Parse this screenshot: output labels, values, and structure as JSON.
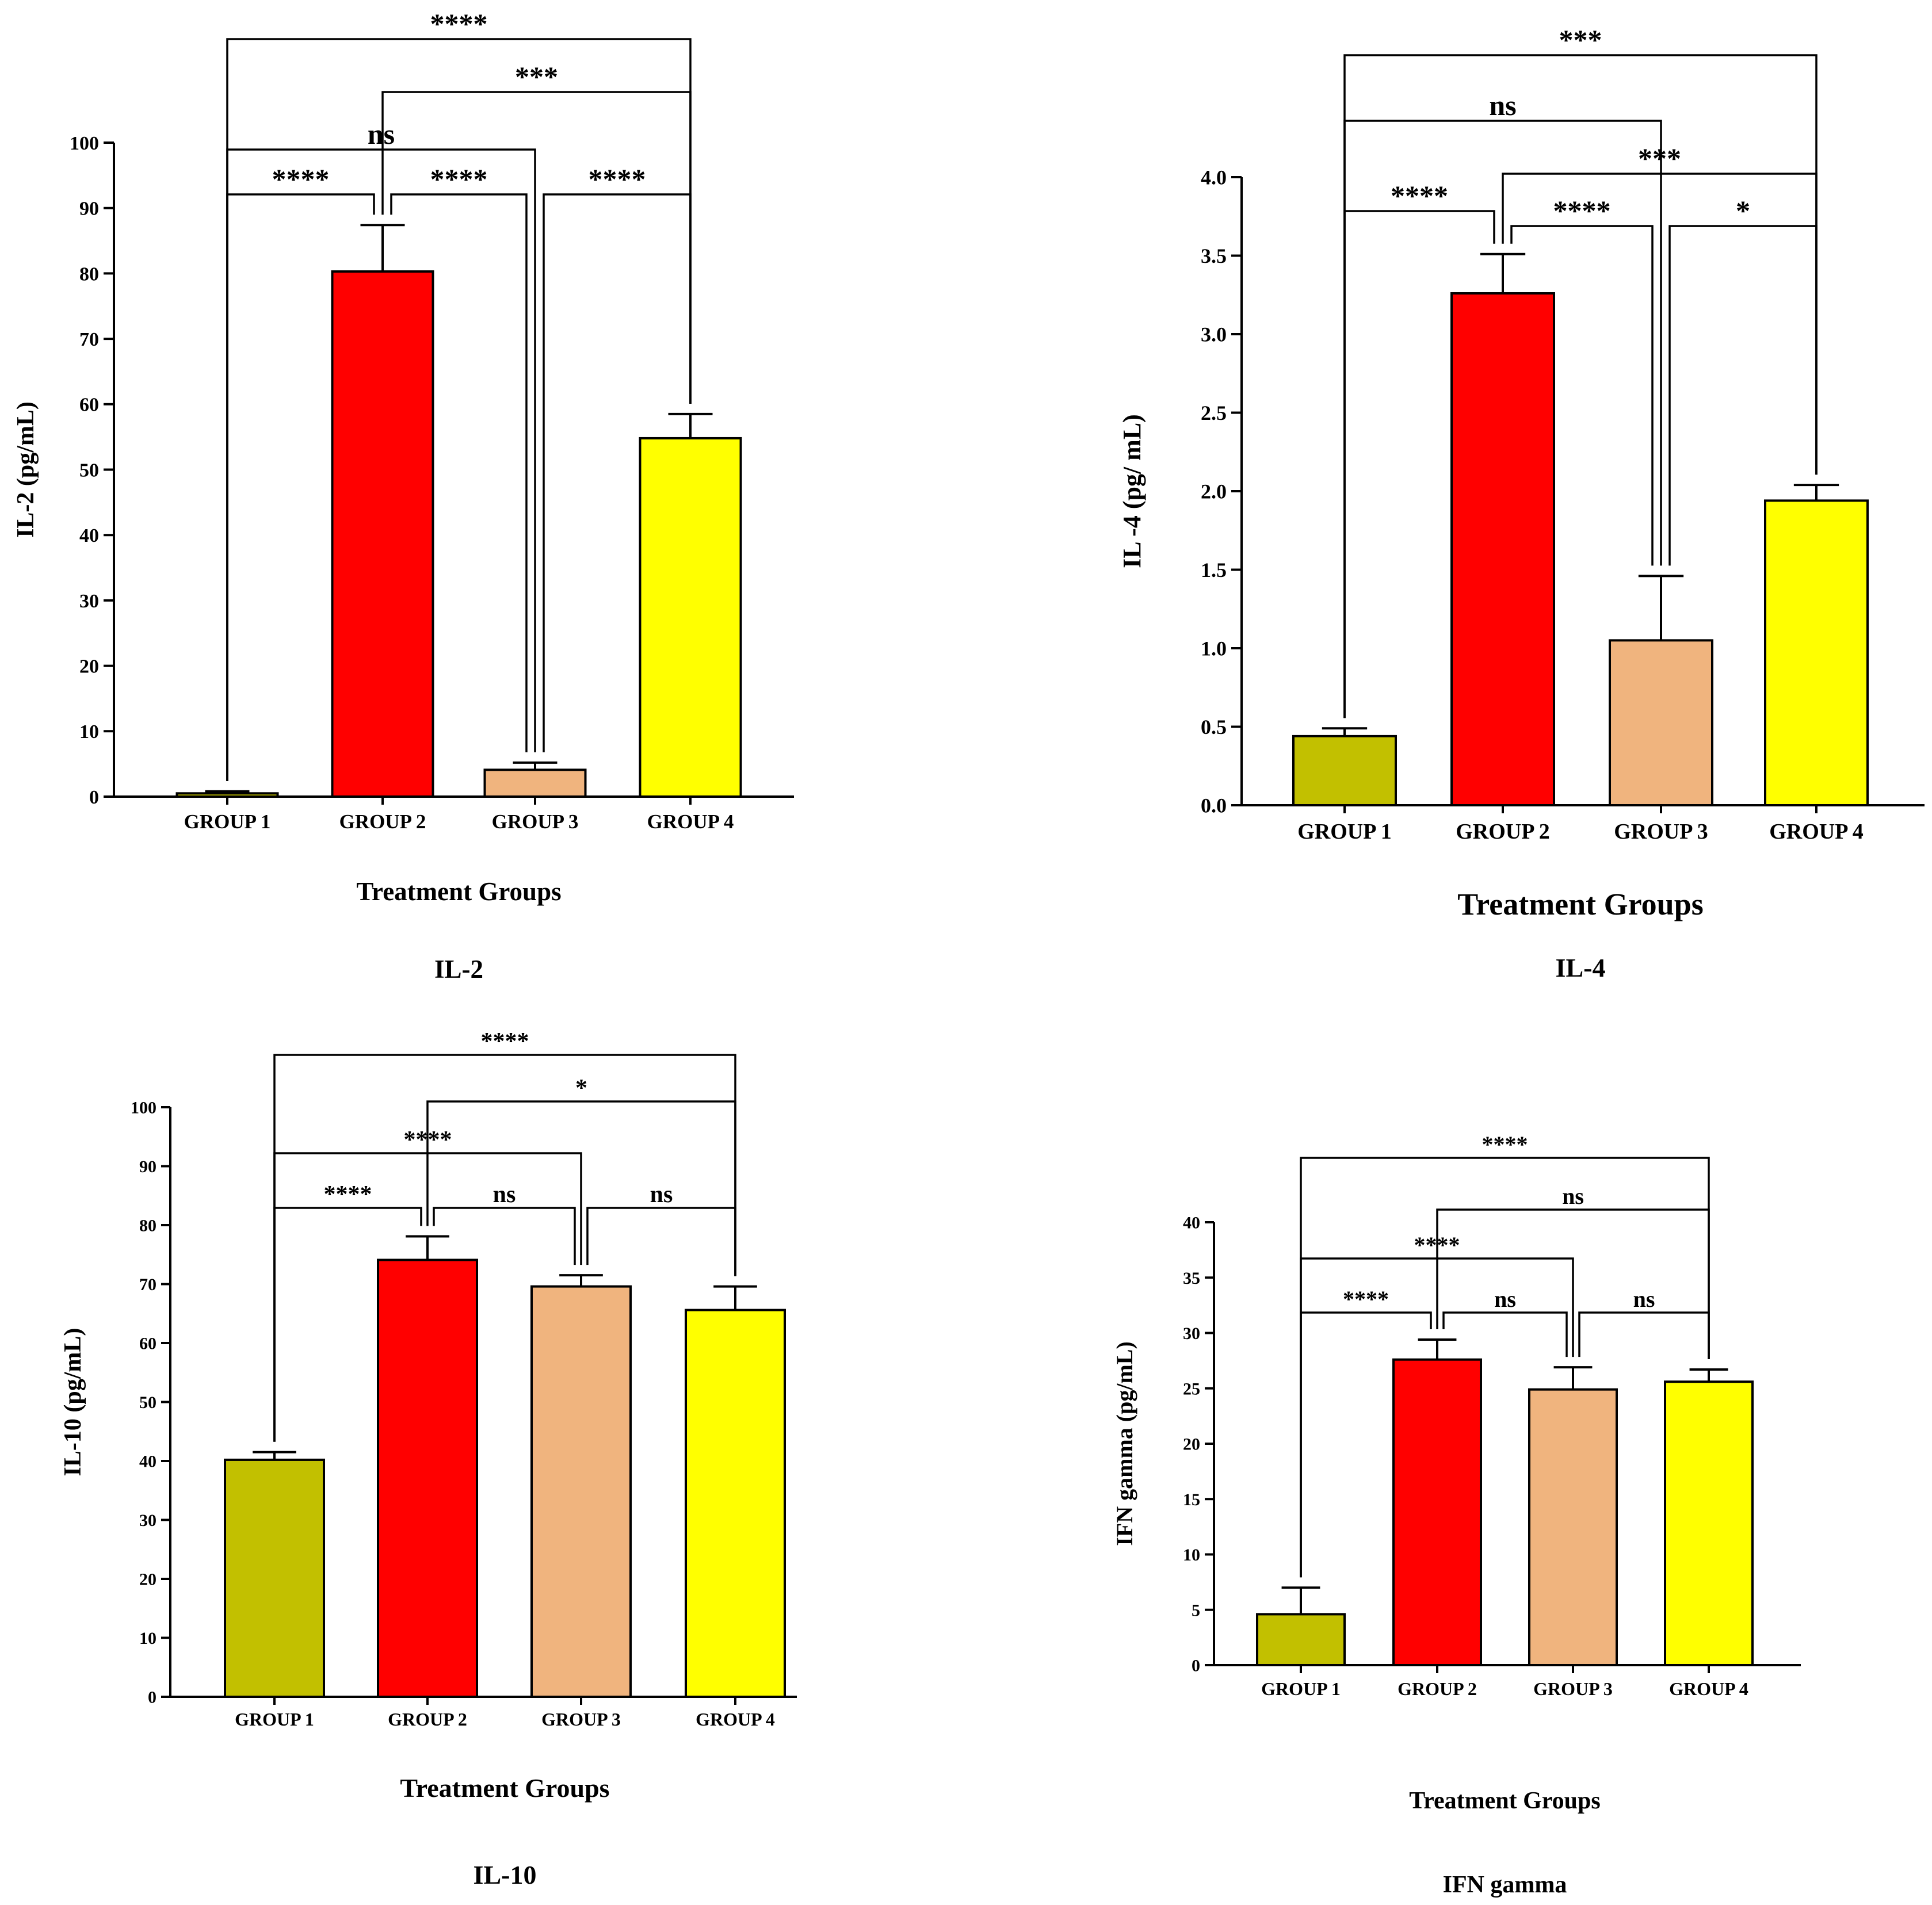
{
  "figure": {
    "colors": {
      "group1": "#c2c000",
      "group2": "#ff0000",
      "group3": "#f0b47e",
      "group4": "#ffff00",
      "axis": "#000000"
    }
  },
  "chart_data": [
    {
      "type": "bar",
      "title": "IL-2",
      "xlabel": "Treatment Groups",
      "ylabel": "IL-2 (pg/mL)",
      "ylim": [
        0,
        100
      ],
      "yticks": [
        0,
        10,
        20,
        30,
        40,
        50,
        60,
        70,
        80,
        90,
        100
      ],
      "categories": [
        "GROUP 1",
        "GROUP 2",
        "GROUP 3",
        "GROUP 4"
      ],
      "values": [
        0.5,
        80.3,
        4.1,
        54.8
      ],
      "errors": [
        0.3,
        7.1,
        1.1,
        3.7
      ],
      "comparisons": [
        {
          "from": 0,
          "to": 1,
          "label": "****"
        },
        {
          "from": 1,
          "to": 2,
          "label": "****"
        },
        {
          "from": 2,
          "to": 3,
          "label": "****"
        },
        {
          "from": 0,
          "to": 2,
          "label": "ns"
        },
        {
          "from": 1,
          "to": 3,
          "label": "***"
        },
        {
          "from": 0,
          "to": 3,
          "label": "****"
        }
      ]
    },
    {
      "type": "bar",
      "title": "IL-4",
      "xlabel": "Treatment Groups",
      "ylabel": "IL -4 (pg/ mL)",
      "ylim": [
        0,
        4.0
      ],
      "yticks": [
        "0.0",
        "0.5",
        "1.0",
        "1.5",
        "2.0",
        "2.5",
        "3.0",
        "3.5",
        "4.0"
      ],
      "categories": [
        "GROUP 1",
        "GROUP 2",
        "GROUP 3",
        "GROUP 4"
      ],
      "values": [
        0.44,
        3.26,
        1.05,
        1.94
      ],
      "errors": [
        0.05,
        0.25,
        0.41,
        0.1
      ],
      "comparisons": [
        {
          "from": 0,
          "to": 1,
          "label": "****"
        },
        {
          "from": 1,
          "to": 2,
          "label": "****"
        },
        {
          "from": 2,
          "to": 3,
          "label": "*"
        },
        {
          "from": 1,
          "to": 3,
          "label": "***"
        },
        {
          "from": 0,
          "to": 2,
          "label": "ns"
        },
        {
          "from": 0,
          "to": 3,
          "label": "***"
        }
      ]
    },
    {
      "type": "bar",
      "title": "IL-10",
      "xlabel": "Treatment Groups",
      "ylabel": "IL-10 (pg/mL)",
      "ylim": [
        0,
        100
      ],
      "yticks": [
        0,
        10,
        20,
        30,
        40,
        50,
        60,
        70,
        80,
        90,
        100
      ],
      "categories": [
        "GROUP 1",
        "GROUP 2",
        "GROUP 3",
        "GROUP 4"
      ],
      "values": [
        40.2,
        74.1,
        69.6,
        65.6
      ],
      "errors": [
        1.3,
        4.0,
        1.9,
        4.0
      ],
      "comparisons": [
        {
          "from": 0,
          "to": 1,
          "label": "****"
        },
        {
          "from": 1,
          "to": 2,
          "label": "ns"
        },
        {
          "from": 2,
          "to": 3,
          "label": "ns"
        },
        {
          "from": 0,
          "to": 2,
          "label": "****"
        },
        {
          "from": 1,
          "to": 3,
          "label": "*"
        },
        {
          "from": 0,
          "to": 3,
          "label": "****"
        }
      ]
    },
    {
      "type": "bar",
      "title": "IFN gamma",
      "xlabel": "Treatment Groups",
      "ylabel": "IFN gamma (pg/mL)",
      "ylim": [
        0,
        40
      ],
      "yticks": [
        0,
        5,
        10,
        15,
        20,
        25,
        30,
        35,
        40
      ],
      "categories": [
        "GROUP 1",
        "GROUP 2",
        "GROUP 3",
        "GROUP 4"
      ],
      "values": [
        4.6,
        27.6,
        24.9,
        25.6
      ],
      "errors": [
        2.4,
        1.8,
        2.0,
        1.1
      ],
      "comparisons": [
        {
          "from": 0,
          "to": 1,
          "label": "****"
        },
        {
          "from": 1,
          "to": 2,
          "label": "ns"
        },
        {
          "from": 2,
          "to": 3,
          "label": "ns"
        },
        {
          "from": 0,
          "to": 2,
          "label": "****"
        },
        {
          "from": 1,
          "to": 3,
          "label": "ns"
        },
        {
          "from": 0,
          "to": 3,
          "label": "****"
        }
      ]
    }
  ]
}
